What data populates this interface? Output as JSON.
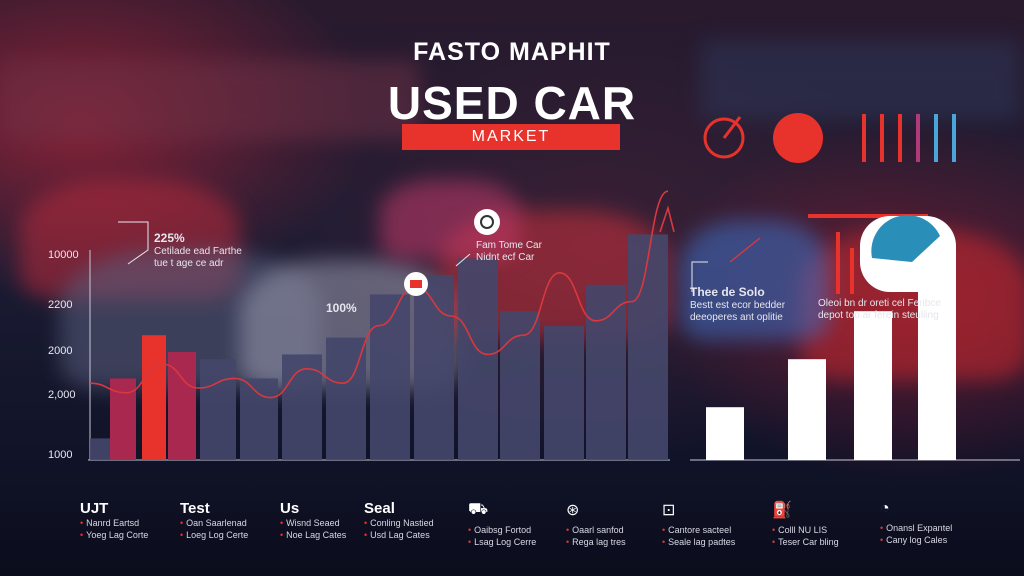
{
  "header": {
    "brand": "FASTO MAPHIT",
    "title": "USED CAR",
    "subtitle": "MARKET"
  },
  "annotations": [
    {
      "id": "a1",
      "value": "225%",
      "line1": "Cetilade ead Farthe",
      "line2": "tue t age ce adr"
    },
    {
      "id": "a2",
      "value": "100%",
      "line1": "",
      "line2": ""
    },
    {
      "id": "a3",
      "value": "",
      "line1": "Fam Tome Car",
      "line2": "Nidnt ecf Car"
    },
    {
      "id": "a4",
      "value": "Thee de Solo",
      "line1": "Bestt est ecor bedder",
      "line2": "deeoperes ant oplitie"
    },
    {
      "id": "a5",
      "value": "",
      "line1": "Oleoi bn dr oreti cel Feribce",
      "line2": "depot too ar ferein steulling"
    }
  ],
  "legend": [
    {
      "title": "UJT",
      "icon": "",
      "l1": "Nanrd Eartsd",
      "l2": "Yoeg Lag Corte"
    },
    {
      "title": "Test",
      "icon": "",
      "l1": "Oan Saarlenad",
      "l2": "Loeg Log Certe"
    },
    {
      "title": "Us",
      "icon": "",
      "l1": "Wisnd Seaed",
      "l2": "Noe Lag Cates"
    },
    {
      "title": "Seal",
      "icon": "",
      "l1": "Conling Nastied",
      "l2": "Usd Lag Cates"
    },
    {
      "title": "",
      "icon": "car-icon",
      "l1": "Oaibsg Fortod",
      "l2": "Lsag Log Cerre"
    },
    {
      "title": "",
      "icon": "steering-icon",
      "l1": "Oaarl sanfod",
      "l2": "Rega lag tres"
    },
    {
      "title": "",
      "icon": "tag-icon",
      "l1": "Cantore sacteel",
      "l2": "Seale lag padtes"
    },
    {
      "title": "",
      "icon": "fuel-icon",
      "l1": "Colll NU LIS",
      "l2": "Teser Car bling"
    },
    {
      "title": "",
      "icon": "gauge-icon",
      "l1": "Onansl Expantel",
      "l2": "Cany log Cales"
    }
  ],
  "colors": {
    "accent": "#e8322c",
    "bar_dark": "#44476a",
    "bar_red": "#e8322c",
    "bar_maroon": "#a8284f",
    "bar_white": "#ffffff",
    "line": "#d8383e"
  },
  "chart_data": {
    "type": "bar",
    "title": "USED CAR",
    "ylabel": "",
    "xlabel": "",
    "ylim": [
      1000,
      10000
    ],
    "y_ticks": [
      "1000",
      "2,000",
      "2000",
      "2200",
      "10000"
    ],
    "main_bars": [
      {
        "x": 1,
        "value": 1450,
        "color": "dark"
      },
      {
        "x": 2,
        "value": 2700,
        "color": "maroon"
      },
      {
        "x": 3,
        "value": 3600,
        "color": "red"
      },
      {
        "x": 4,
        "value": 3250,
        "color": "maroon"
      },
      {
        "x": 5,
        "value": 3100,
        "color": "dark"
      },
      {
        "x": 6,
        "value": 2700,
        "color": "dark"
      },
      {
        "x": 7,
        "value": 3200,
        "color": "dark"
      },
      {
        "x": 8,
        "value": 3550,
        "color": "dark"
      },
      {
        "x": 9,
        "value": 4450,
        "color": "dark"
      },
      {
        "x": 10,
        "value": 4850,
        "color": "dark"
      },
      {
        "x": 11,
        "value": 5200,
        "color": "dark"
      },
      {
        "x": 12,
        "value": 4100,
        "color": "dark"
      },
      {
        "x": 13,
        "value": 3800,
        "color": "dark"
      },
      {
        "x": 14,
        "value": 4650,
        "color": "dark"
      },
      {
        "x": 15,
        "value": 5700,
        "color": "dark"
      }
    ],
    "white_bars": [
      {
        "x": 1,
        "value": 1100
      },
      {
        "x": 2,
        "value": 2100
      },
      {
        "x": 3,
        "value": 3100
      },
      {
        "x": 4,
        "value": 4200
      }
    ],
    "trend_line": [
      2600,
      2400,
      3000,
      2500,
      2700,
      2300,
      2900,
      2600,
      3800,
      4600,
      4000,
      3200,
      3600,
      4900,
      3900,
      4300,
      6600
    ]
  }
}
